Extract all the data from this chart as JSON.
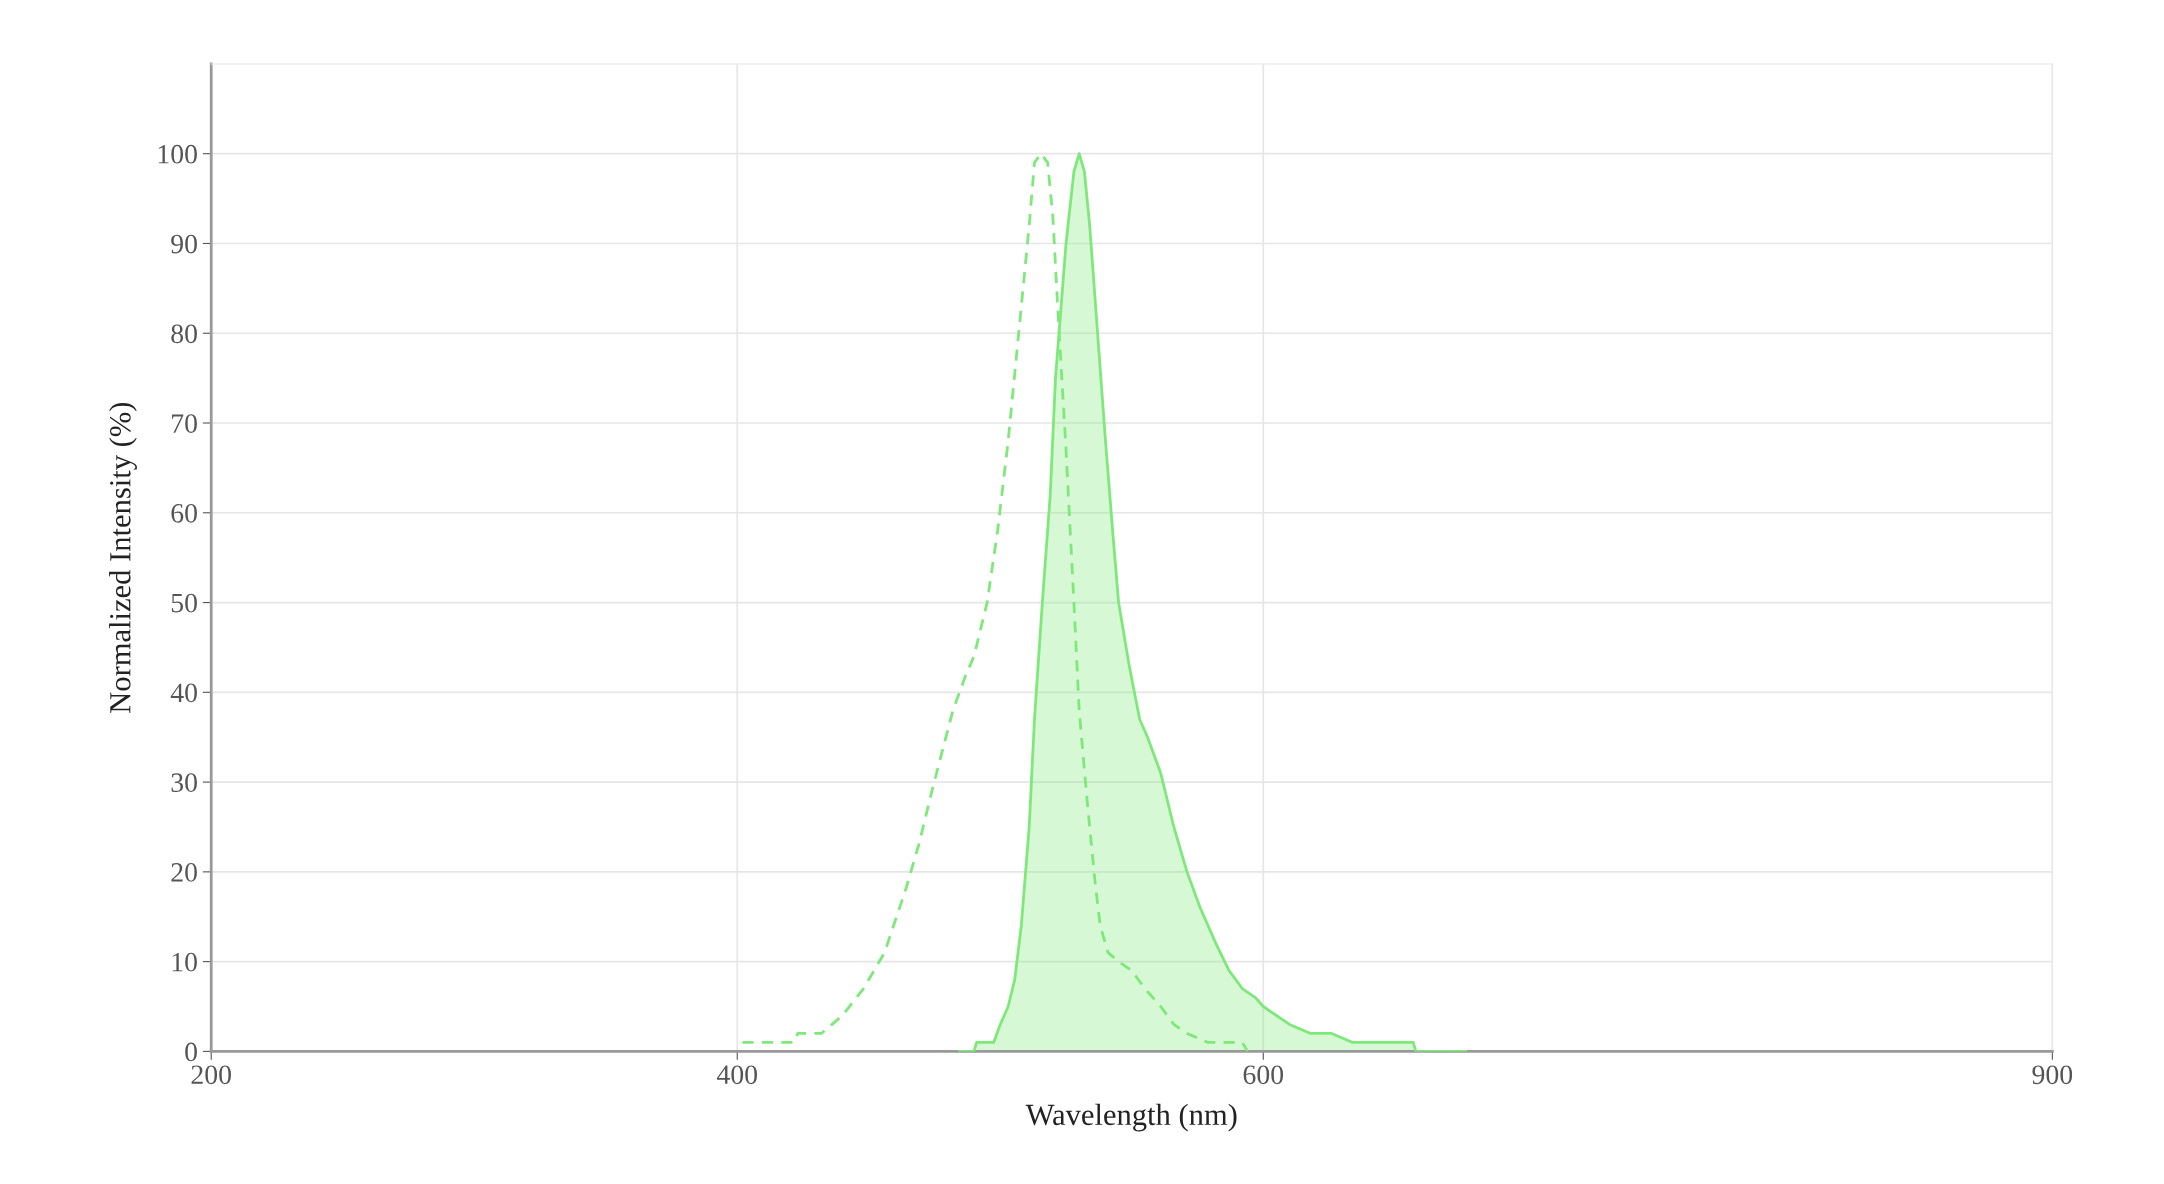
{
  "chart_data": {
    "type": "line",
    "xlabel": "Wavelength (nm)",
    "ylabel": "Normalized Intensity (%)",
    "xlim": [
      200,
      900
    ],
    "ylim": [
      0,
      110
    ],
    "xticks": [
      200,
      400,
      600,
      900
    ],
    "yticks": [
      0,
      10,
      20,
      30,
      40,
      50,
      60,
      70,
      80,
      90,
      100
    ],
    "grid": true,
    "marker": "none",
    "series": [
      {
        "line_style": "dashed",
        "color": "#7ee87a",
        "x": [
          402,
          421.5,
          423,
          432,
          440,
          448,
          456,
          464,
          469,
          474,
          482,
          487,
          490,
          495,
          499,
          503,
          507,
          511,
          513,
          515.5,
          518,
          520,
          522,
          525,
          528,
          530,
          533,
          536,
          538,
          541,
          545,
          550,
          555,
          561,
          566,
          571,
          579,
          592,
          594
        ],
        "values": [
          1,
          1,
          2,
          2,
          4,
          7,
          11,
          18,
          23,
          29,
          38,
          42,
          44,
          50,
          58,
          68,
          80,
          92,
          99,
          100,
          99,
          93,
          82,
          67,
          50,
          38,
          28,
          19,
          14,
          11,
          10,
          9,
          7,
          5,
          3,
          2,
          1,
          1,
          0
        ]
      },
      {
        "type": "area",
        "line_style": "solid",
        "color": "#7ee87a",
        "x": [
          484.5,
          490,
          491,
          497.5,
          500,
          503,
          505.5,
          508,
          511,
          513,
          516,
          519,
          521,
          525,
          528,
          530,
          532,
          534,
          537,
          540,
          543,
          545,
          549,
          553,
          556,
          561,
          566,
          571,
          576,
          582,
          587,
          592,
          597,
          600,
          605,
          610,
          618,
          626,
          634,
          645,
          657,
          658,
          677
        ],
        "values": [
          0,
          0,
          1,
          1,
          3,
          5,
          8,
          14,
          25,
          37,
          50,
          62,
          75,
          90,
          98,
          100,
          98,
          92,
          80,
          68,
          57,
          50,
          43,
          37,
          35,
          31,
          25,
          20,
          16,
          12,
          9,
          7,
          6,
          5,
          4,
          3,
          2,
          2,
          1,
          1,
          1,
          0,
          0
        ]
      }
    ]
  }
}
